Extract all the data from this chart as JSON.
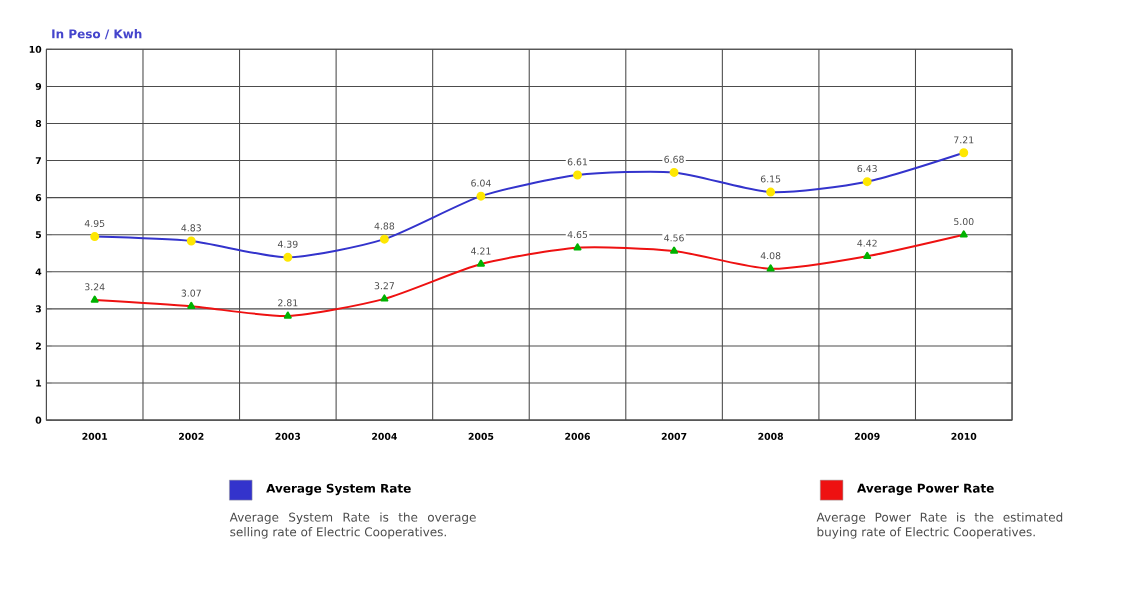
{
  "chart_data": {
    "type": "line",
    "ylabel": "In Peso / Kwh",
    "categories": [
      "2001",
      "2002",
      "2003",
      "2004",
      "2005",
      "2006",
      "2007",
      "2008",
      "2009",
      "2010"
    ],
    "series": [
      {
        "name": "Average System Rate",
        "color": "#3333cc",
        "marker": "circle",
        "values": [
          4.95,
          4.83,
          4.39,
          4.88,
          6.04,
          6.61,
          6.68,
          6.15,
          6.43,
          7.21
        ],
        "value_labels": [
          "4.95",
          "4.83",
          "4.39",
          "4.88",
          "6.04",
          "6.61",
          "6.68",
          "6.15",
          "6.43",
          "7.21"
        ]
      },
      {
        "name": "Average Power Rate",
        "color": "#ee1111",
        "marker": "triangle",
        "values": [
          3.24,
          3.07,
          2.81,
          3.27,
          4.21,
          4.65,
          4.56,
          4.08,
          4.42,
          5.0
        ],
        "value_labels": [
          "3.24",
          "3.07",
          "2.81",
          "3.27",
          "4.21",
          "4.65",
          "4.56",
          "4.08",
          "4.42",
          "5.00"
        ]
      }
    ],
    "ylim": [
      0,
      10
    ],
    "yticks": [
      0,
      1,
      2,
      3,
      4,
      5,
      6,
      7,
      8,
      9,
      10
    ],
    "grid": true,
    "legend": "bottom",
    "line_style": "solid",
    "annotations": [
      "Average System Rate is the overage selling rate of Electric Cooperatives.",
      "Average Power Rate is the estimated buying rate of Electric Cooperatives."
    ]
  }
}
